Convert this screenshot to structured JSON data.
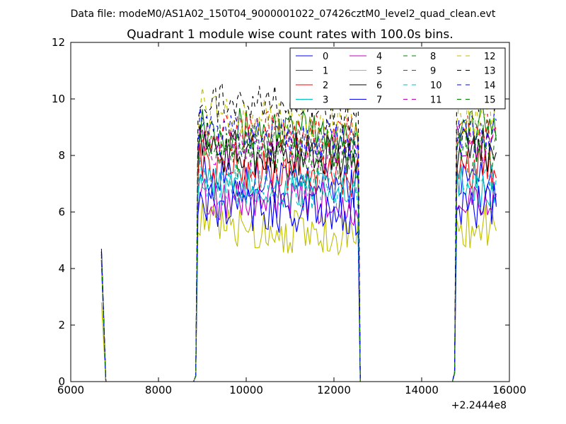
{
  "figure": {
    "suptitle": "Data file: modeM0/AS1A02_150T04_9000001022_07426cztM0_level2_quad_clean.evt",
    "title": "Quadrant 1 module wise count rates with 100.0s bins.",
    "x_offset_label": "+2.2444e8"
  },
  "chart_data": {
    "type": "line",
    "title": "Quadrant 1 module wise count rates with 100.0s bins.",
    "xlabel": "",
    "ylabel": "",
    "xlim": [
      6000,
      16000
    ],
    "ylim": [
      0,
      12
    ],
    "x_offset": 224440000,
    "xticks": [
      6000,
      8000,
      10000,
      12000,
      14000,
      16000
    ],
    "yticks": [
      0,
      2,
      4,
      6,
      8,
      10,
      12
    ],
    "grid": false,
    "legend": {
      "placement": "top-right",
      "columns": 4
    },
    "profile_x": [
      6700,
      6800,
      8800,
      8850,
      8900,
      9000,
      12450,
      12500,
      12550,
      12600,
      14700,
      14750,
      14800,
      14900,
      15700
    ],
    "level_mod": [
      0,
      0,
      0,
      0.25,
      0.7,
      1,
      1,
      1,
      0.95,
      0,
      0,
      0.1,
      0.85,
      1,
      1
    ],
    "note_levels_are_per_series": true,
    "series": [
      {
        "name": "0",
        "color": "#0000ff",
        "dash": "solid",
        "spike": 4.7,
        "level": 7.2
      },
      {
        "name": "1",
        "color": "#008000",
        "dash": "solid",
        "spike": 4.5,
        "level": 9.0
      },
      {
        "name": "2",
        "color": "#ff0000",
        "dash": "solid",
        "spike": 4.4,
        "level": 7.6
      },
      {
        "name": "3",
        "color": "#00bfbf",
        "dash": "solid",
        "spike": 4.3,
        "level": 6.9
      },
      {
        "name": "4",
        "color": "#bf00bf",
        "dash": "solid",
        "spike": 4.2,
        "level": 6.5
      },
      {
        "name": "5",
        "color": "#bfbf00",
        "dash": "solid",
        "spike": 2.8,
        "level": 5.5
      },
      {
        "name": "6",
        "color": "#000000",
        "dash": "solid",
        "spike": 4.6,
        "level": 8.2
      },
      {
        "name": "7",
        "color": "#0000ff",
        "dash": "solid",
        "spike": 4.5,
        "level": 6.2
      },
      {
        "name": "8",
        "color": "#008000",
        "dash": "dashed",
        "spike": 4.4,
        "level": 8.6
      },
      {
        "name": "9",
        "color": "#ff0000",
        "dash": "dashed",
        "spike": 4.3,
        "level": 8.9
      },
      {
        "name": "10",
        "color": "#00bfbf",
        "dash": "dashed",
        "spike": 4.2,
        "level": 7.0
      },
      {
        "name": "11",
        "color": "#bf00bf",
        "dash": "dashed",
        "spike": 4.3,
        "level": 8.4
      },
      {
        "name": "12",
        "color": "#bfbf00",
        "dash": "dashed",
        "spike": 4.4,
        "level": 9.4
      },
      {
        "name": "13",
        "color": "#000000",
        "dash": "dashed",
        "spike": 4.6,
        "level": 9.9
      },
      {
        "name": "14",
        "color": "#0000ff",
        "dash": "dashed",
        "spike": 4.5,
        "level": 8.7
      },
      {
        "name": "15",
        "color": "#008000",
        "dash": "dashed",
        "spike": 4.3,
        "level": 8.1
      }
    ]
  }
}
